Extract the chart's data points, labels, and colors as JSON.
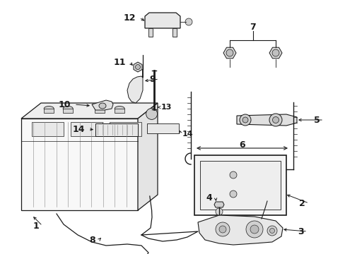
{
  "background_color": "#ffffff",
  "fig_width": 4.89,
  "fig_height": 3.6,
  "dpi": 100,
  "line_color": "#1a1a1a",
  "text_color": "#1a1a1a",
  "font_size": 9,
  "lw": 0.9
}
